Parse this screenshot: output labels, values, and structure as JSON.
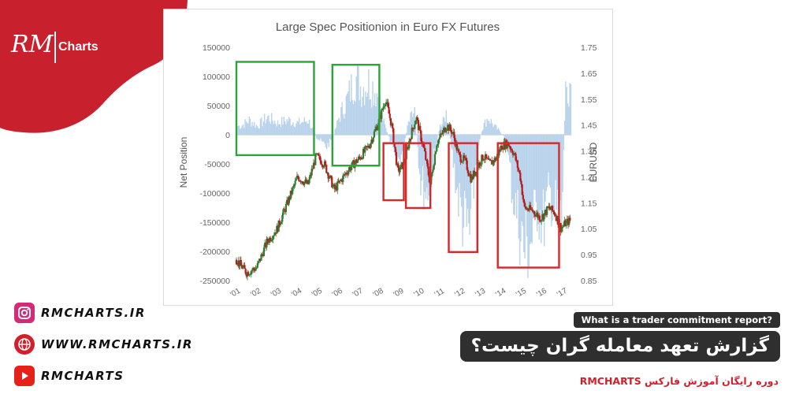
{
  "brand": {
    "logo_text": "Charts",
    "logo_script": "RM",
    "red": "#c8202c",
    "navy": "#1f2a6b"
  },
  "social": [
    {
      "icon": "instagram-icon",
      "text": "RMCHARTS.IR",
      "color": "#d62976"
    },
    {
      "icon": "globe-icon",
      "text": "WWW.RMCHARTS.IR",
      "color": "#d11f2b"
    },
    {
      "icon": "youtube-icon",
      "text": "RMCHARTS",
      "color": "#e62117"
    }
  ],
  "question_en": "What is a trader commitment report?",
  "question_fa": "گزارش تعهد معامله گران چیست؟",
  "course_text": "دوره رایگان آموزش فارکس RMCHARTS",
  "chart_data": {
    "type": "bar",
    "title": "Large Spec Positionion in Euro FX Futures",
    "ylabel": "Net Position",
    "y2label": "EURUSD",
    "ylim": [
      -250000,
      150000
    ],
    "y2lim": [
      0.85,
      1.75
    ],
    "yticks": [
      "150000",
      "100000",
      "50000",
      "0",
      "-50000",
      "-100000",
      "-150000",
      "-200000",
      "-250000"
    ],
    "y2ticks": [
      "1.75",
      "1.65",
      "1.55",
      "1.45",
      "1.35",
      "1.25",
      "1.15",
      "1.05",
      "0.95",
      "0.85"
    ],
    "xticks": [
      "'01",
      "'02",
      "'03",
      "'04",
      "'05",
      "'06",
      "'07",
      "'08",
      "'09",
      "'10",
      "'11",
      "'12",
      "'13",
      "'14",
      "'15",
      "'16",
      "'17"
    ],
    "xlim": [
      2001.0,
      2017.4
    ],
    "colors": {
      "bars": "#b9d3ec",
      "candle_up": "#2e7d32",
      "candle_down": "#b71c1c",
      "green_box": "#2ea33a",
      "red_box": "#d62828"
    },
    "series": [
      {
        "values_desc": "net_position",
        "x": [
          2001.2,
          2001.6,
          2002.0,
          2002.5,
          2003.0,
          2003.5,
          2004.0,
          2004.5,
          2004.9,
          2005.4,
          2005.7,
          2006.0,
          2006.4,
          2006.8,
          2007.1,
          2007.5,
          2007.9,
          2008.2,
          2008.5,
          2008.8,
          2009.1,
          2009.4,
          2009.7,
          2010.0,
          2010.3,
          2010.6,
          2010.9,
          2011.2,
          2011.5,
          2011.8,
          2012.1,
          2012.4,
          2012.7,
          2013.0,
          2013.3,
          2013.6,
          2013.9,
          2014.2,
          2014.5,
          2014.8,
          2015.1,
          2015.4,
          2015.7,
          2016.0,
          2016.3,
          2016.6,
          2016.9,
          2017.1,
          2017.3
        ],
        "values": [
          15000,
          25000,
          15000,
          30000,
          20000,
          25000,
          20000,
          25000,
          -5000,
          -20000,
          -5000,
          30000,
          60000,
          100000,
          80000,
          90000,
          70000,
          20000,
          -10000,
          -50000,
          -30000,
          20000,
          40000,
          -80000,
          -100000,
          -50000,
          10000,
          40000,
          -20000,
          -100000,
          -150000,
          -170000,
          -50000,
          10000,
          30000,
          15000,
          5000,
          -10000,
          -100000,
          -150000,
          -200000,
          -180000,
          -120000,
          -150000,
          -100000,
          -130000,
          -150000,
          80000,
          90000
        ]
      },
      {
        "values_desc": "eurusd",
        "x": [
          2001.0,
          2001.5,
          2002.0,
          2002.5,
          2003.0,
          2003.5,
          2004.0,
          2004.5,
          2004.9,
          2005.3,
          2005.8,
          2006.5,
          2007.0,
          2007.5,
          2008.0,
          2008.3,
          2008.6,
          2008.9,
          2009.2,
          2009.5,
          2009.8,
          2010.2,
          2010.5,
          2010.8,
          2011.1,
          2011.3,
          2011.6,
          2011.9,
          2012.2,
          2012.5,
          2012.8,
          2013.1,
          2013.4,
          2013.7,
          2014.0,
          2014.3,
          2014.6,
          2014.9,
          2015.1,
          2015.5,
          2015.9,
          2016.3,
          2016.6,
          2016.9,
          2017.1,
          2017.3
        ],
        "values": [
          0.93,
          0.88,
          0.9,
          1.0,
          1.05,
          1.15,
          1.25,
          1.22,
          1.33,
          1.3,
          1.2,
          1.28,
          1.32,
          1.37,
          1.47,
          1.55,
          1.45,
          1.27,
          1.3,
          1.4,
          1.48,
          1.35,
          1.22,
          1.38,
          1.42,
          1.45,
          1.42,
          1.33,
          1.31,
          1.24,
          1.29,
          1.33,
          1.3,
          1.32,
          1.37,
          1.38,
          1.34,
          1.25,
          1.13,
          1.12,
          1.09,
          1.13,
          1.11,
          1.05,
          1.07,
          1.08
        ]
      }
    ],
    "green_boxes": [
      [
        2001.0,
        2004.8,
        125000,
        -35000
      ],
      [
        2005.7,
        2008.0,
        120000,
        -53000
      ]
    ],
    "red_boxes": [
      [
        2008.2,
        2009.2,
        1.38,
        1.16
      ],
      [
        2009.3,
        2010.5,
        1.38,
        1.13
      ],
      [
        2011.4,
        2012.8,
        1.38,
        0.96
      ],
      [
        2013.8,
        2016.8,
        1.38,
        0.9
      ]
    ]
  }
}
